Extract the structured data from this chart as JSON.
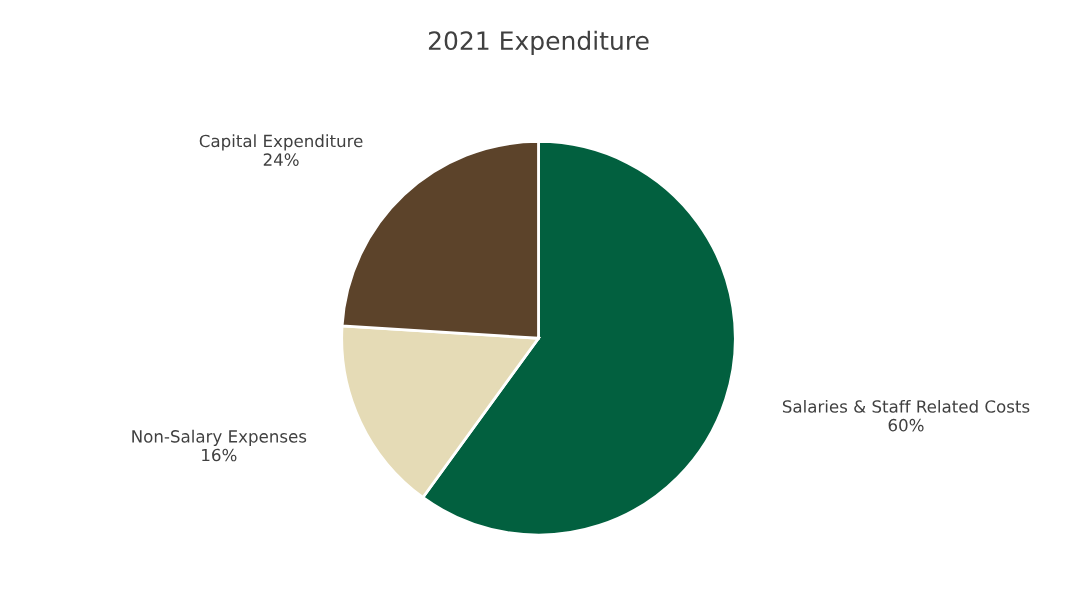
{
  "chart_data": {
    "type": "pie",
    "title": "2021 Expenditure",
    "categories": [
      "Salaries & Staff Related Costs",
      "Non-Salary Expenses",
      "Capital Expenditure"
    ],
    "values": [
      60,
      16,
      24
    ],
    "colors": [
      "#02603f",
      "#e5dbb6",
      "#5c432a"
    ],
    "value_labels": [
      "60%",
      "16%",
      "24%"
    ],
    "legend": false
  }
}
